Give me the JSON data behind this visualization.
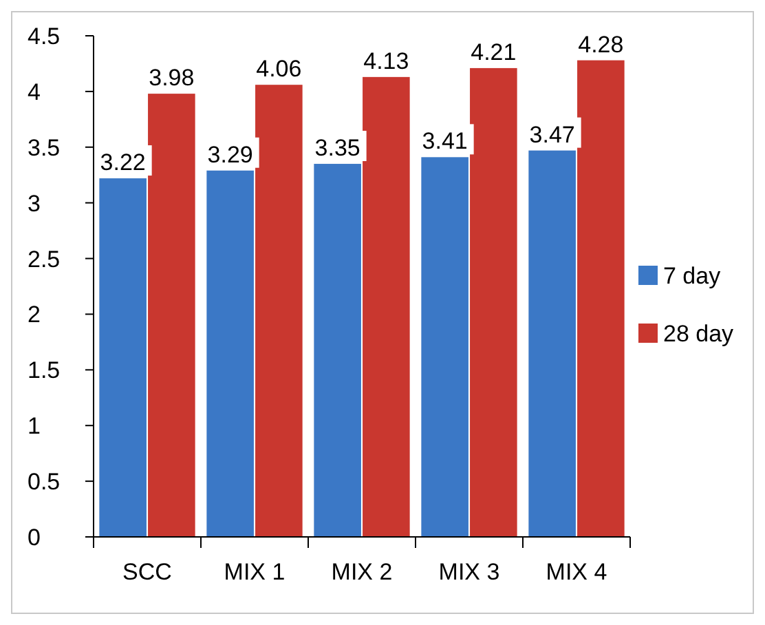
{
  "chart_data": {
    "type": "bar",
    "categories": [
      "SCC",
      "MIX 1",
      "MIX 2",
      "MIX 3",
      "MIX 4"
    ],
    "series": [
      {
        "name": "7 day",
        "color": "#3b78c6",
        "values": [
          3.22,
          3.29,
          3.35,
          3.41,
          3.47
        ]
      },
      {
        "name": "28 day",
        "color": "#c9372f",
        "values": [
          3.98,
          4.06,
          4.13,
          4.21,
          4.28
        ]
      }
    ],
    "ylim": [
      0,
      4.5
    ],
    "yticks": [
      0,
      0.5,
      1,
      1.5,
      2,
      2.5,
      3,
      3.5,
      4,
      4.5
    ],
    "data_labels": true,
    "legend": "right",
    "grid": false
  }
}
